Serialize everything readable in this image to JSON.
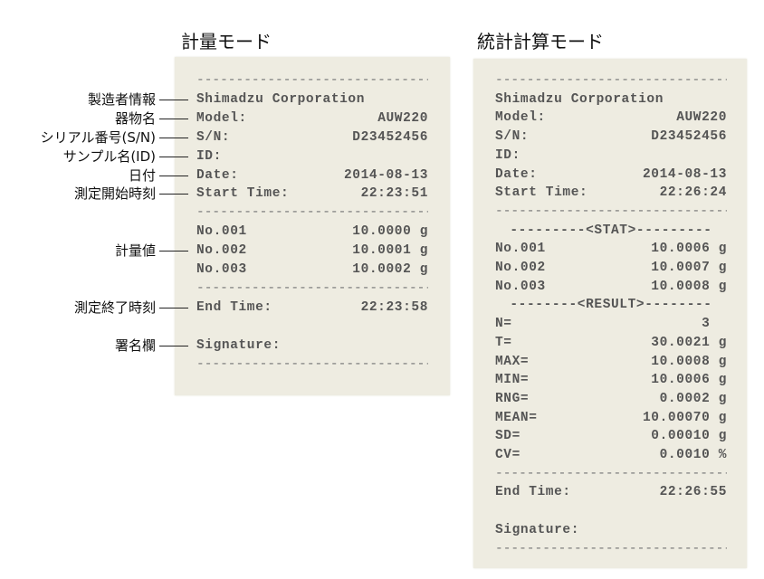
{
  "titles": {
    "weighing": "計量モード",
    "statistics": "統計計算モード"
  },
  "annotations": [
    {
      "label": "製造者情報",
      "row": 1
    },
    {
      "label": "器物名",
      "row": 2
    },
    {
      "label": "シリアル番号(S/N)",
      "row": 3
    },
    {
      "label": "サンプル名(ID)",
      "row": 4
    },
    {
      "label": "日付",
      "row": 5
    },
    {
      "label": "測定開始時刻",
      "row": 6
    },
    {
      "label": "計量値",
      "row": 9
    },
    {
      "label": "測定終了時刻",
      "row": 12
    },
    {
      "label": "署名欄",
      "row": 14
    }
  ],
  "weighing_printout": [
    {
      "kind": "dash",
      "text": "------------------------------"
    },
    {
      "kind": "kv",
      "label": "Shimadzu Corporation",
      "value": ""
    },
    {
      "kind": "kv",
      "label": "Model:",
      "value": "AUW220"
    },
    {
      "kind": "kv",
      "label": "S/N:",
      "value": "D23452456"
    },
    {
      "kind": "kv",
      "label": "ID:",
      "value": ""
    },
    {
      "kind": "kv",
      "label": "Date:",
      "value": "2014-08-13"
    },
    {
      "kind": "kv",
      "label": "Start Time:",
      "value": "22:23:51"
    },
    {
      "kind": "dash",
      "text": "------------------------------"
    },
    {
      "kind": "kv",
      "label": "No.001",
      "value": "10.0000 g"
    },
    {
      "kind": "kv",
      "label": "No.002",
      "value": "10.0001 g"
    },
    {
      "kind": "kv",
      "label": "No.003",
      "value": "10.0002 g"
    },
    {
      "kind": "dash",
      "text": "------------------------------"
    },
    {
      "kind": "kv",
      "label": "End Time:",
      "value": "22:23:58"
    },
    {
      "kind": "blank"
    },
    {
      "kind": "kv",
      "label": "Signature:",
      "value": ""
    },
    {
      "kind": "dash",
      "text": "------------------------------"
    }
  ],
  "statistics_printout": [
    {
      "kind": "dash",
      "text": "------------------------------"
    },
    {
      "kind": "kv",
      "label": "Shimadzu Corporation",
      "value": ""
    },
    {
      "kind": "kv",
      "label": "Model:",
      "value": "AUW220"
    },
    {
      "kind": "kv",
      "label": "S/N:",
      "value": "D23452456"
    },
    {
      "kind": "kv",
      "label": "ID:",
      "value": ""
    },
    {
      "kind": "kv",
      "label": "Date:",
      "value": "2014-08-13"
    },
    {
      "kind": "kv",
      "label": "Start Time:",
      "value": "22:26:24"
    },
    {
      "kind": "dash",
      "text": "------------------------------"
    },
    {
      "kind": "center",
      "text": "---------<STAT>---------"
    },
    {
      "kind": "kv",
      "label": "No.001",
      "value": "10.0006 g"
    },
    {
      "kind": "kv",
      "label": "No.002",
      "value": "10.0007 g"
    },
    {
      "kind": "kv",
      "label": "No.003",
      "value": "10.0008 g"
    },
    {
      "kind": "center",
      "text": "--------<RESULT>--------"
    },
    {
      "kind": "kv",
      "label": "N=",
      "value": "3  "
    },
    {
      "kind": "kv",
      "label": "T=",
      "value": "30.0021 g"
    },
    {
      "kind": "kv",
      "label": "MAX=",
      "value": "10.0008 g"
    },
    {
      "kind": "kv",
      "label": "MIN=",
      "value": "10.0006 g"
    },
    {
      "kind": "kv",
      "label": "RNG=",
      "value": "0.0002 g"
    },
    {
      "kind": "kv",
      "label": "MEAN=",
      "value": "10.00070 g"
    },
    {
      "kind": "kv",
      "label": "SD=",
      "value": "0.00010 g"
    },
    {
      "kind": "kv",
      "label": "CV=",
      "value": "0.0010 %"
    },
    {
      "kind": "dash",
      "text": "------------------------------"
    },
    {
      "kind": "kv",
      "label": "End Time:",
      "value": "22:26:55"
    },
    {
      "kind": "blank"
    },
    {
      "kind": "kv",
      "label": "Signature:",
      "value": ""
    },
    {
      "kind": "dash",
      "text": "------------------------------"
    }
  ]
}
